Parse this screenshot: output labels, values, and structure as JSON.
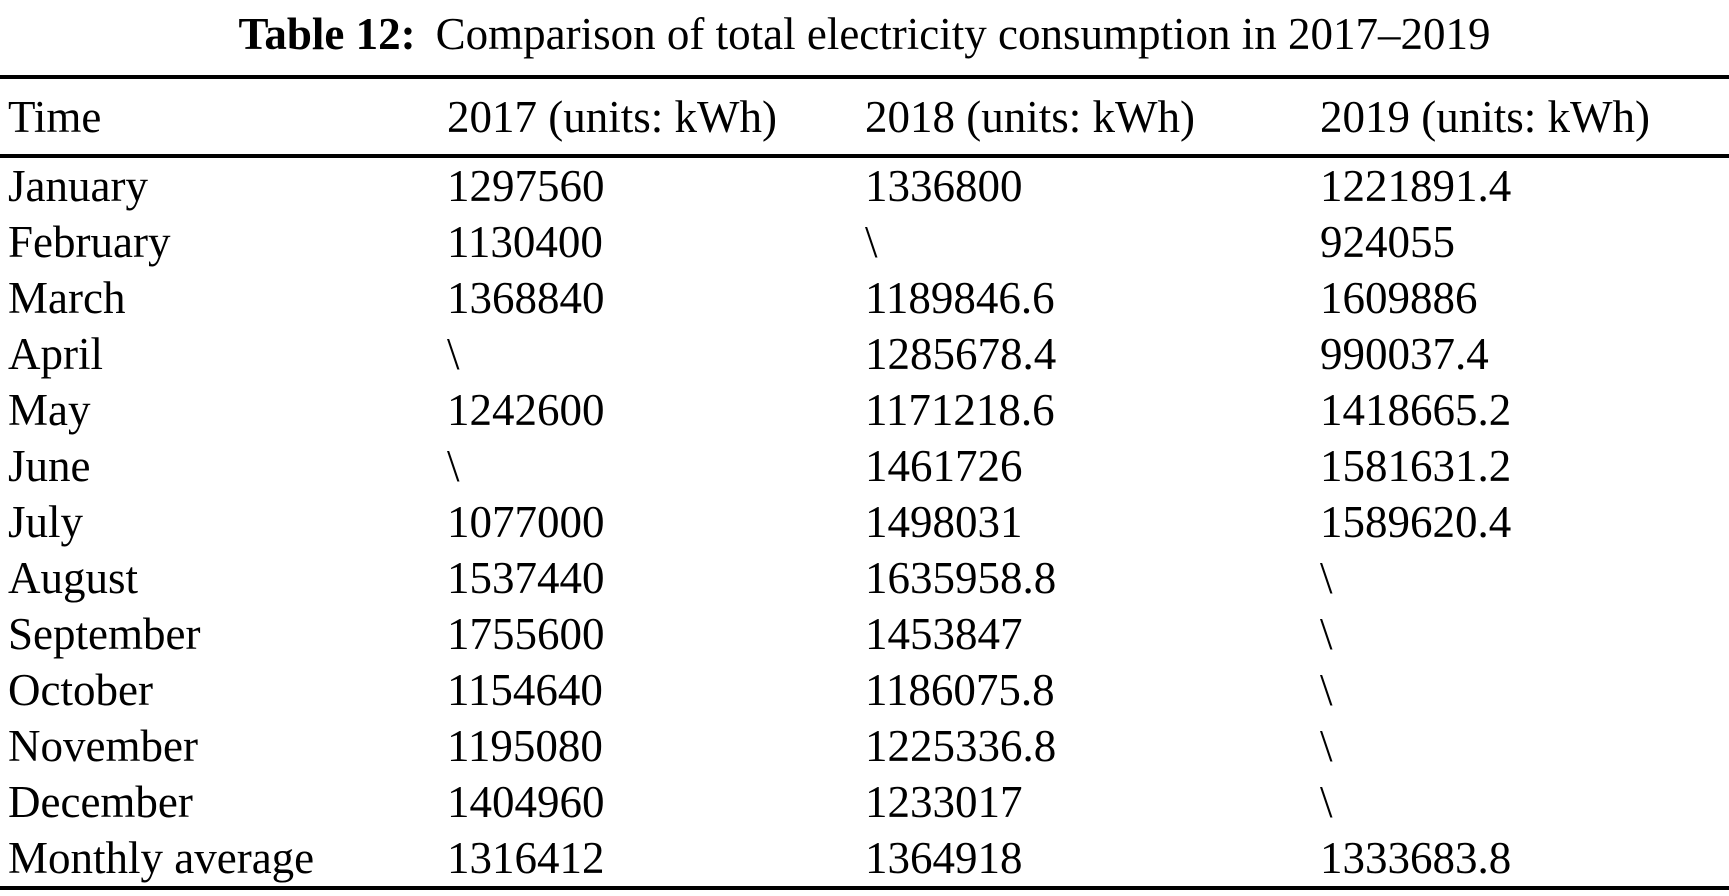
{
  "page": {
    "background": "#ffffff",
    "text_color": "#000000"
  },
  "caption": {
    "label": "Table 12:",
    "text": "Comparison of total electricity consumption in 2017–2019"
  },
  "table": {
    "columns": [
      "Time",
      "2017 (units: kWh)",
      "2018 (units: kWh)",
      "2019 (units: kWh)"
    ],
    "missing_marker": "\\",
    "rows": [
      [
        "January",
        "1297560",
        "1336800",
        "1221891.4"
      ],
      [
        "February",
        "1130400",
        "\\",
        "924055"
      ],
      [
        "March",
        "1368840",
        "1189846.6",
        "1609886"
      ],
      [
        "April",
        "\\",
        "1285678.4",
        "990037.4"
      ],
      [
        "May",
        "1242600",
        "1171218.6",
        "1418665.2"
      ],
      [
        "June",
        "\\",
        "1461726",
        "1581631.2"
      ],
      [
        "July",
        "1077000",
        "1498031",
        "1589620.4"
      ],
      [
        "August",
        "1537440",
        "1635958.8",
        "\\"
      ],
      [
        "September",
        "1755600",
        "1453847",
        "\\"
      ],
      [
        "October",
        "1154640",
        "1186075.8",
        "\\"
      ],
      [
        "November",
        "1195080",
        "1225336.8",
        "\\"
      ],
      [
        "December",
        "1404960",
        "1233017",
        "\\"
      ],
      [
        "Monthly average",
        "1316412",
        "1364918",
        "1333683.8"
      ]
    ]
  },
  "chart_data": {
    "type": "table",
    "title": "Table 12: Comparison of total electricity consumption in 2017–2019",
    "categories": [
      "January",
      "February",
      "March",
      "April",
      "May",
      "June",
      "July",
      "August",
      "September",
      "October",
      "November",
      "December",
      "Monthly average"
    ],
    "series": [
      {
        "name": "2017 (units: kWh)",
        "values": [
          1297560,
          1130400,
          1368840,
          null,
          1242600,
          null,
          1077000,
          1537440,
          1755600,
          1154640,
          1195080,
          1404960,
          1316412
        ]
      },
      {
        "name": "2018 (units: kWh)",
        "values": [
          1336800,
          null,
          1189846.6,
          1285678.4,
          1171218.6,
          1461726,
          1498031,
          1635958.8,
          1453847,
          1186075.8,
          1225336.8,
          1233017,
          1364918
        ]
      },
      {
        "name": "2019 (units: kWh)",
        "values": [
          1221891.4,
          924055,
          1609886,
          990037.4,
          1418665.2,
          1581631.2,
          1589620.4,
          null,
          null,
          null,
          null,
          null,
          1333683.8
        ]
      }
    ],
    "missing_value_marker": "\\"
  }
}
